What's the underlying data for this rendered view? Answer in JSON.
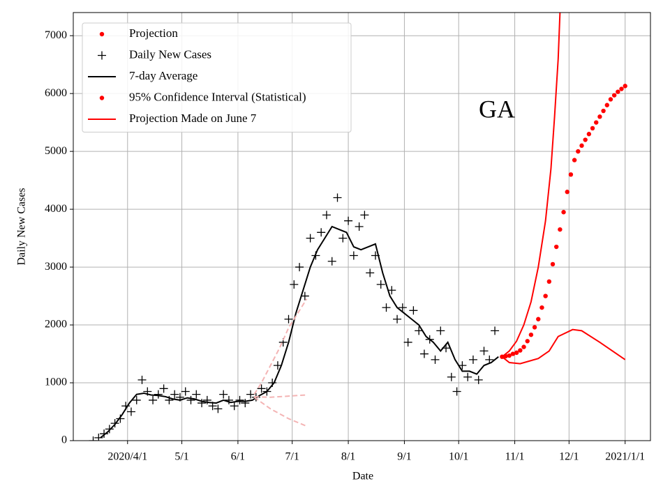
{
  "chart_data": {
    "type": "line",
    "annotation": "GA",
    "xlabel": "Date",
    "ylabel": "Daily New Cases",
    "xlim": [
      61,
      380
    ],
    "ylim": [
      0,
      7400
    ],
    "xticks": [
      {
        "value": 91,
        "label": "2020/4/1"
      },
      {
        "value": 121,
        "label": "5/1"
      },
      {
        "value": 152,
        "label": "6/1"
      },
      {
        "value": 182,
        "label": "7/1"
      },
      {
        "value": 213,
        "label": "8/1"
      },
      {
        "value": 244,
        "label": "9/1"
      },
      {
        "value": 274,
        "label": "10/1"
      },
      {
        "value": 305,
        "label": "11/1"
      },
      {
        "value": 335,
        "label": "12/1"
      },
      {
        "value": 366,
        "label": "2021/1/1"
      }
    ],
    "yticks": [
      0,
      1000,
      2000,
      3000,
      4000,
      5000,
      6000,
      7000
    ],
    "grid": true,
    "legend": "upper left",
    "series": [
      {
        "name": "Projection",
        "color": "#ff0000",
        "marker": "dot",
        "x": [
          298,
          300,
          302,
          304,
          306,
          308,
          310,
          312,
          314,
          316,
          318,
          320,
          322,
          324,
          326,
          328,
          330,
          332,
          334,
          336,
          338,
          340,
          342,
          344,
          346,
          348,
          350,
          352,
          354,
          356,
          358,
          360,
          362,
          364,
          366
        ],
        "values": [
          1450,
          1460,
          1470,
          1500,
          1520,
          1560,
          1620,
          1720,
          1830,
          1960,
          2100,
          2300,
          2500,
          2750,
          3050,
          3350,
          3650,
          3950,
          4300,
          4600,
          4850,
          5000,
          5100,
          5200,
          5300,
          5400,
          5500,
          5600,
          5700,
          5800,
          5900,
          5970,
          6030,
          6080,
          6130
        ]
      },
      {
        "name": "Daily New Cases",
        "color": "#000000",
        "marker": "plus",
        "x": [
          72,
          75,
          78,
          81,
          84,
          87,
          90,
          93,
          96,
          99,
          102,
          105,
          108,
          111,
          114,
          117,
          120,
          123,
          126,
          129,
          132,
          135,
          138,
          141,
          144,
          147,
          150,
          153,
          156,
          159,
          162,
          165,
          168,
          171,
          174,
          177,
          180,
          183,
          186,
          189,
          192,
          195,
          198,
          201,
          204,
          207,
          210,
          213,
          216,
          219,
          222,
          225,
          228,
          231,
          234,
          237,
          240,
          243,
          246,
          249,
          252,
          255,
          258,
          261,
          264,
          267,
          270,
          273,
          276,
          279,
          282,
          285,
          288,
          291,
          294
        ],
        "values": [
          0,
          50,
          120,
          200,
          300,
          380,
          600,
          500,
          700,
          1050,
          850,
          700,
          800,
          900,
          700,
          800,
          750,
          850,
          700,
          800,
          650,
          700,
          600,
          550,
          800,
          700,
          600,
          700,
          650,
          800,
          750,
          900,
          850,
          1000,
          1300,
          1700,
          2100,
          2700,
          3000,
          2500,
          3500,
          3200,
          3600,
          3900,
          3100,
          4200,
          3500,
          3800,
          3200,
          3700,
          3900,
          2900,
          3200,
          2700,
          2300,
          2600,
          2100,
          2300,
          1700,
          2250,
          1900,
          1500,
          1750,
          1400,
          1900,
          1600,
          1100,
          850,
          1300,
          1100,
          1400,
          1050,
          1550,
          1400,
          1900
        ]
      },
      {
        "name": "7-day Average",
        "color": "#000000",
        "line": "solid",
        "x": [
          76,
          80,
          84,
          88,
          92,
          96,
          100,
          104,
          108,
          112,
          116,
          120,
          124,
          128,
          132,
          136,
          140,
          144,
          148,
          152,
          156,
          160,
          164,
          168,
          172,
          176,
          180,
          184,
          188,
          192,
          196,
          200,
          204,
          208,
          212,
          216,
          220,
          224,
          228,
          232,
          236,
          240,
          244,
          248,
          252,
          256,
          260,
          264,
          268,
          272,
          276,
          280,
          284,
          288,
          292,
          296
        ],
        "values": [
          50,
          150,
          280,
          450,
          650,
          800,
          820,
          790,
          780,
          760,
          720,
          700,
          740,
          720,
          680,
          660,
          650,
          700,
          660,
          680,
          680,
          700,
          780,
          850,
          1000,
          1300,
          1700,
          2200,
          2600,
          3000,
          3300,
          3500,
          3700,
          3650,
          3600,
          3350,
          3300,
          3350,
          3400,
          2900,
          2500,
          2300,
          2200,
          2100,
          2000,
          1800,
          1700,
          1550,
          1700,
          1400,
          1200,
          1200,
          1150,
          1300,
          1350,
          1450
        ]
      },
      {
        "name": "95% Confidence Interval (Statistical)",
        "color": "#ff0000",
        "marker": "dot"
      },
      {
        "name": "Projection Made on June 7",
        "color": "#ff0000",
        "line": "solid",
        "segments": [
          {
            "x": [
              298,
              302,
              308,
              318,
              324,
              329,
              337,
              342,
              352,
              366
            ],
            "values": [
              1450,
              1350,
              1330,
              1420,
              1550,
              1800,
              1920,
              1900,
              1700,
              1400
            ]
          },
          {
            "x": [
              298,
              302,
              306,
              310,
              314,
              318,
              322,
              325,
              327,
              329,
              330
            ],
            "values": [
              1450,
              1550,
              1720,
              2000,
              2400,
              3000,
              3800,
              4700,
              5600,
              6600,
              7400
            ]
          }
        ]
      },
      {
        "color": "#f4b4b4",
        "line": "dashed",
        "segments": [
          {
            "x": [
              161,
              165,
              170,
              175,
              180,
              185,
              190
            ],
            "values": [
              800,
              1000,
              1300,
              1600,
              1950,
              2200,
              2450
            ]
          },
          {
            "x": [
              161,
              170,
              180,
              190
            ],
            "values": [
              760,
              750,
              770,
              790
            ]
          },
          {
            "x": [
              161,
              170,
              180,
              190
            ],
            "values": [
              750,
              550,
              380,
              250
            ]
          }
        ]
      }
    ]
  }
}
